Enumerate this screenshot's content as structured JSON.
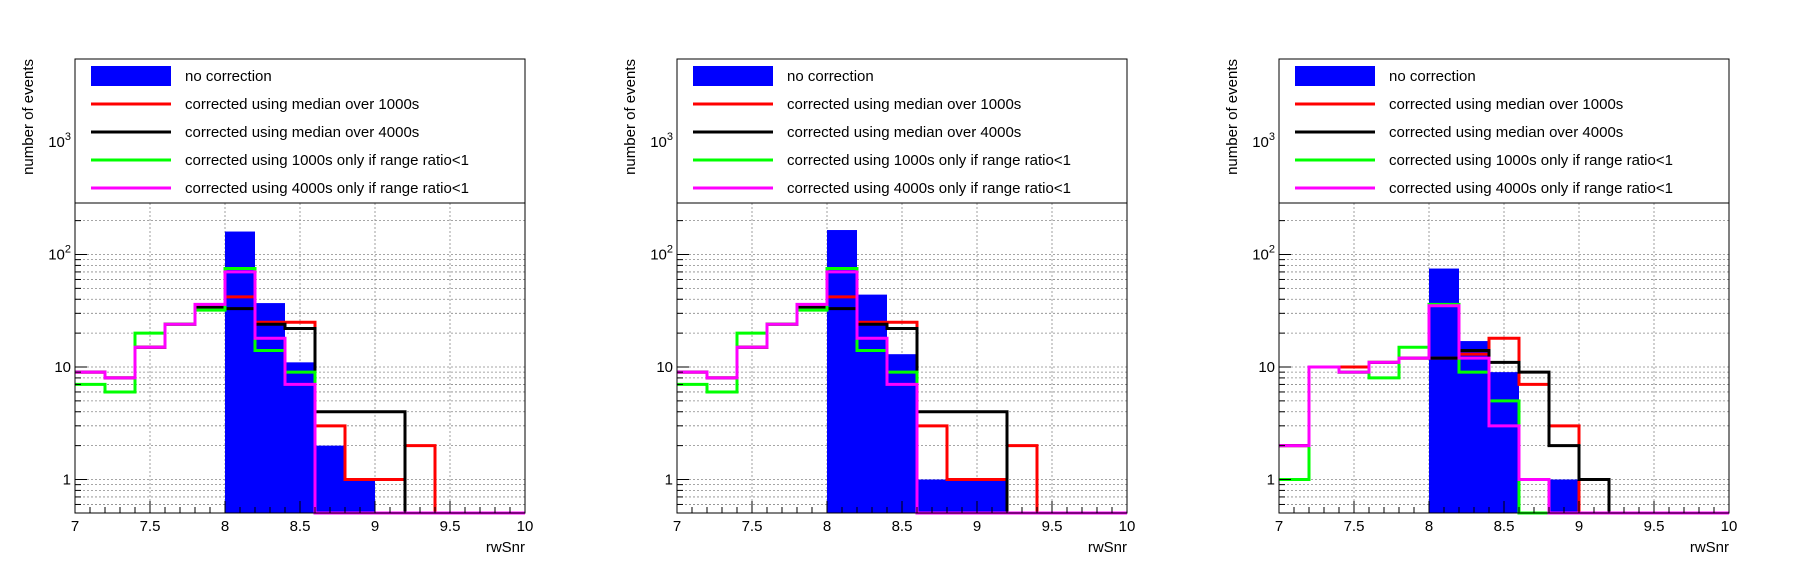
{
  "colors": {
    "no_correction": "#0000ff",
    "median_1000": "#ff0000",
    "median_4000": "#000000",
    "range_1000": "#00ff00",
    "range_4000": "#ff00ff"
  },
  "chart_data": [
    {
      "type": "histogram",
      "xlabel": "rwSnr",
      "ylabel": "number of events",
      "ylog": true,
      "ylim": [
        0.5,
        5000
      ],
      "xlim": [
        7,
        10
      ],
      "xticks": [
        "7",
        "7.5",
        "8",
        "8.5",
        "9",
        "9.5",
        "10"
      ],
      "yticks": [
        "1",
        "10",
        "10²",
        "10³"
      ],
      "grid": true,
      "legend_position": "top",
      "bin_edges": [
        7.0,
        7.2,
        7.4,
        7.6,
        7.8,
        8.0,
        8.2,
        8.4,
        8.6,
        8.8,
        9.0,
        9.2,
        9.4,
        9.6,
        9.8,
        10.0
      ],
      "series": [
        {
          "name": "no correction",
          "style": "filled",
          "color_key": "no_correction",
          "values": [
            0,
            0,
            0,
            0,
            0,
            160,
            37,
            11,
            2,
            1,
            0,
            0,
            0,
            0,
            0
          ]
        },
        {
          "name": "corrected using median over 1000s",
          "style": "step",
          "color_key": "median_1000",
          "values": [
            9,
            8,
            15,
            24,
            34,
            42,
            25,
            25,
            3,
            1,
            1,
            2,
            0,
            0,
            0
          ]
        },
        {
          "name": "corrected using median over 4000s",
          "style": "step",
          "color_key": "median_4000",
          "values": [
            9,
            8,
            15,
            24,
            34,
            33,
            24,
            22,
            4,
            4,
            4,
            0,
            0,
            0,
            0
          ]
        },
        {
          "name": "corrected using 1000s only if range ratio<1",
          "style": "step",
          "color_key": "range_1000",
          "values": [
            7,
            6,
            20,
            24,
            32,
            75,
            14,
            9,
            0,
            0,
            0,
            0,
            0,
            0,
            0
          ]
        },
        {
          "name": "corrected using 4000s only if range ratio<1",
          "style": "step",
          "color_key": "range_4000",
          "values": [
            9,
            8,
            15,
            24,
            36,
            70,
            18,
            7,
            0,
            0,
            0,
            0,
            0,
            0,
            0
          ]
        }
      ]
    },
    {
      "type": "histogram",
      "xlabel": "rwSnr",
      "ylabel": "number of events",
      "ylog": true,
      "ylim": [
        0.5,
        5000
      ],
      "xlim": [
        7,
        10
      ],
      "xticks": [
        "7",
        "7.5",
        "8",
        "8.5",
        "9",
        "9.5",
        "10"
      ],
      "yticks": [
        "1",
        "10",
        "10²",
        "10³"
      ],
      "grid": true,
      "legend_position": "top",
      "bin_edges": [
        7.0,
        7.2,
        7.4,
        7.6,
        7.8,
        8.0,
        8.2,
        8.4,
        8.6,
        8.8,
        9.0,
        9.2,
        9.4,
        9.6,
        9.8,
        10.0
      ],
      "series": [
        {
          "name": "no correction",
          "style": "filled",
          "color_key": "no_correction",
          "values": [
            0,
            0,
            0,
            0,
            0,
            165,
            44,
            13,
            1,
            1,
            1,
            0,
            0,
            0,
            0
          ]
        },
        {
          "name": "corrected using median over 1000s",
          "style": "step",
          "color_key": "median_1000",
          "values": [
            9,
            8,
            15,
            24,
            34,
            42,
            25,
            25,
            3,
            1,
            1,
            2,
            0,
            0,
            0
          ]
        },
        {
          "name": "corrected using median over 4000s",
          "style": "step",
          "color_key": "median_4000",
          "values": [
            9,
            8,
            15,
            24,
            34,
            33,
            24,
            22,
            4,
            4,
            4,
            0,
            0,
            0,
            0
          ]
        },
        {
          "name": "corrected using 1000s only if range ratio<1",
          "style": "step",
          "color_key": "range_1000",
          "values": [
            7,
            6,
            20,
            24,
            32,
            75,
            14,
            9,
            0,
            0,
            0,
            0,
            0,
            0,
            0
          ]
        },
        {
          "name": "corrected using 4000s only if range ratio<1",
          "style": "step",
          "color_key": "range_4000",
          "values": [
            9,
            8,
            15,
            24,
            36,
            70,
            18,
            7,
            0,
            0,
            0,
            0,
            0,
            0,
            0
          ]
        }
      ]
    },
    {
      "type": "histogram",
      "xlabel": "rwSnr",
      "ylabel": "number of events",
      "ylog": true,
      "ylim": [
        0.5,
        5000
      ],
      "xlim": [
        7,
        10
      ],
      "xticks": [
        "7",
        "7.5",
        "8",
        "8.5",
        "9",
        "9.5",
        "10"
      ],
      "yticks": [
        "1",
        "10",
        "10²",
        "10³"
      ],
      "grid": true,
      "legend_position": "top",
      "bin_edges": [
        7.0,
        7.2,
        7.4,
        7.6,
        7.8,
        8.0,
        8.2,
        8.4,
        8.6,
        8.8,
        9.0,
        9.2,
        9.4,
        9.6,
        9.8,
        10.0
      ],
      "series": [
        {
          "name": "no correction",
          "style": "filled",
          "color_key": "no_correction",
          "values": [
            0,
            0,
            0,
            0,
            0,
            75,
            17,
            9,
            0,
            1,
            0,
            0,
            0,
            0,
            0
          ]
        },
        {
          "name": "corrected using median over 1000s",
          "style": "step",
          "color_key": "median_1000",
          "values": [
            2,
            10,
            10,
            11,
            12,
            12,
            13,
            18,
            7,
            3,
            0,
            0,
            0,
            0,
            0
          ]
        },
        {
          "name": "corrected using median over 4000s",
          "style": "step",
          "color_key": "median_4000",
          "values": [
            2,
            10,
            9,
            11,
            12,
            12,
            14,
            11,
            9,
            2,
            1,
            0,
            0,
            0,
            0
          ]
        },
        {
          "name": "corrected using 1000s only if range ratio<1",
          "style": "step",
          "color_key": "range_1000",
          "values": [
            1,
            10,
            9,
            8,
            15,
            36,
            9,
            5,
            0,
            0,
            0,
            0,
            0,
            0,
            0
          ]
        },
        {
          "name": "corrected using 4000s only if range ratio<1",
          "style": "step",
          "color_key": "range_4000",
          "values": [
            2,
            10,
            9,
            11,
            12,
            35,
            12,
            3,
            1,
            0,
            0,
            0,
            0,
            0,
            0
          ]
        }
      ]
    }
  ]
}
